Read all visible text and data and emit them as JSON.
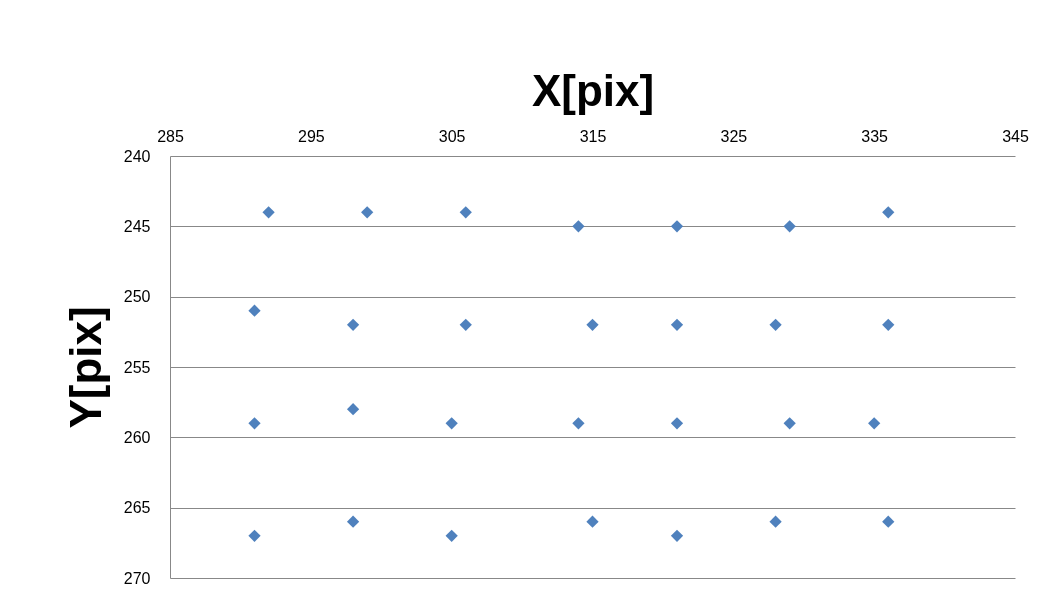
{
  "chart_data": {
    "type": "scatter",
    "xlabel": "X[pix]",
    "ylabel": "Y[pix]",
    "xlim": [
      285,
      345
    ],
    "xticks": [
      285,
      295,
      305,
      315,
      325,
      335,
      345
    ],
    "ylim": [
      270,
      240
    ],
    "yticks": [
      240,
      245,
      250,
      255,
      260,
      265,
      270
    ],
    "grid": "y",
    "marker": "diamond",
    "legend": false,
    "series": [
      {
        "color": "#4f81bd",
        "x": [
          292,
          299,
          306,
          314,
          321,
          329,
          336,
          291,
          298,
          306,
          315,
          321,
          328,
          336,
          291,
          298,
          305,
          314,
          321,
          329,
          335,
          291,
          298,
          305,
          315,
          321,
          328,
          336
        ],
        "values": [
          244,
          244,
          244,
          245,
          245,
          245,
          244,
          251,
          252,
          252,
          252,
          252,
          252,
          252,
          259,
          258,
          259,
          259,
          259,
          259,
          259,
          267,
          266,
          267,
          266,
          267,
          266,
          266
        ]
      }
    ]
  }
}
